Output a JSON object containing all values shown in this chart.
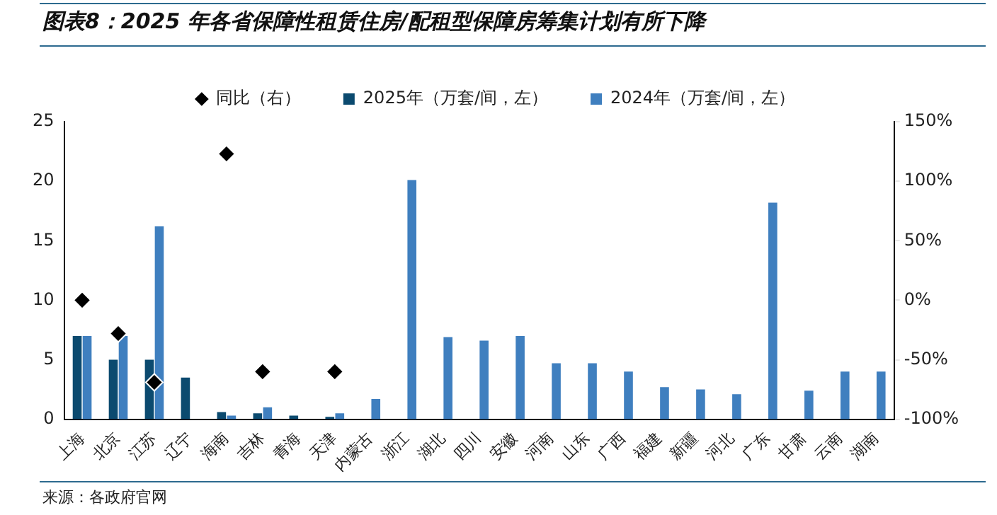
{
  "chart_data": {
    "type": "bar",
    "title": "图表8：2025 年各省保障性租赁住房/配租型保障房筹集计划有所下降",
    "categories": [
      "上海",
      "北京",
      "江苏",
      "辽宁",
      "海南",
      "吉林",
      "青海",
      "天津",
      "内蒙古",
      "浙江",
      "湖北",
      "四川",
      "安徽",
      "河南",
      "山东",
      "广西",
      "福建",
      "新疆",
      "河北",
      "广东",
      "甘肃",
      "云南",
      "湖南"
    ],
    "series": [
      {
        "name": "2025年（万套/间，左）",
        "color": "#0b4a6f",
        "values": [
          7,
          5,
          5,
          3.5,
          0.6,
          0.5,
          0.3,
          0.2,
          null,
          null,
          null,
          null,
          null,
          null,
          null,
          null,
          null,
          null,
          null,
          null,
          null,
          null,
          null
        ]
      },
      {
        "name": "2024年（万套/间，左）",
        "color": "#3f7fbf",
        "values": [
          7,
          7,
          16.2,
          null,
          0.3,
          1,
          null,
          0.5,
          1.7,
          20.1,
          6.9,
          6.6,
          7,
          4.7,
          4.7,
          4,
          2.7,
          2.5,
          2.1,
          18.2,
          2.4,
          4,
          4
        ]
      },
      {
        "name": "同比（右）",
        "type": "scatter",
        "axis": "y2",
        "marker": "diamond",
        "color": "#000000",
        "values": [
          0,
          -28,
          -69,
          null,
          123,
          -60,
          null,
          -60,
          null,
          null,
          null,
          null,
          null,
          null,
          null,
          null,
          null,
          null,
          null,
          null,
          null,
          null,
          null
        ]
      }
    ],
    "ylim": [
      0,
      25
    ],
    "yticks": [
      0,
      5,
      10,
      15,
      20,
      25
    ],
    "y2lim": [
      -100,
      150
    ],
    "y2ticks": [
      {
        "value": -100,
        "label": "-100%"
      },
      {
        "value": -50,
        "label": "-50%"
      },
      {
        "value": 0,
        "label": "0%"
      },
      {
        "value": 50,
        "label": "50%"
      },
      {
        "value": 100,
        "label": "100%"
      },
      {
        "value": 150,
        "label": "150%"
      }
    ],
    "grid": false,
    "legend": "top",
    "annotations": [
      "来源：各政府官网"
    ]
  }
}
